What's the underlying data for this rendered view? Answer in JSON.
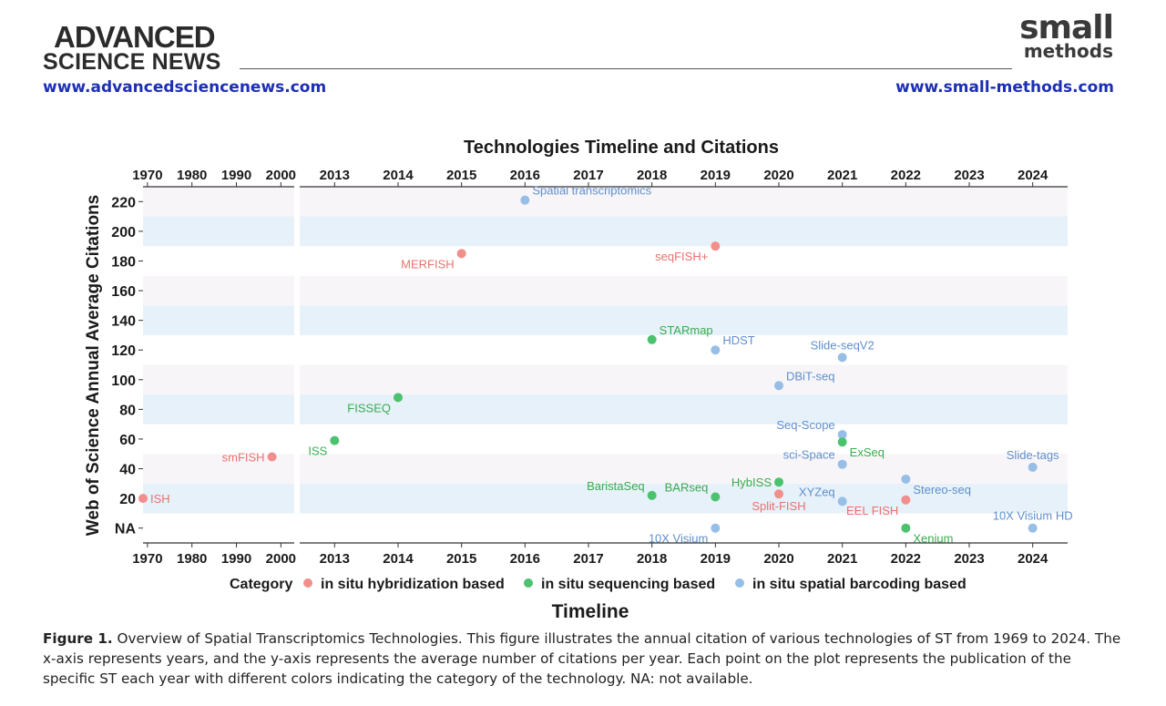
{
  "header": {
    "publisher_line1": "ADVANCED",
    "publisher_line2": "SCIENCE NEWS",
    "publisher_url": "www.advancedsciencenews.com",
    "journal_line1": "small",
    "journal_line2": "methods",
    "journal_url": "www.small-methods.com"
  },
  "caption": {
    "label": "Figure 1.",
    "text": "Overview of Spatial Transcriptomics Technologies. This figure illustrates the annual citation of various technologies of ST from 1969 to 2024. The x-axis represents years, and the y-axis represents the average number of citations per year. Each point on the plot represents the publication of the specific ST each year with different colors indicating the category of the technology. NA: not available."
  },
  "chart_data": {
    "type": "scatter",
    "title": "Technologies Timeline and Citations",
    "xlabel": "Timeline",
    "ylabel": "Web of Science Annual Average Citations",
    "ylim": [
      -10,
      230
    ],
    "yticks": [
      0,
      20,
      40,
      60,
      80,
      100,
      120,
      140,
      160,
      180,
      200,
      220
    ],
    "ytick_labels": [
      "NA",
      "20",
      "40",
      "60",
      "80",
      "100",
      "120",
      "140",
      "160",
      "180",
      "200",
      "220"
    ],
    "panels": [
      {
        "name": "early",
        "xlim": [
          1969,
          2003
        ],
        "ticks": [
          1970,
          1980,
          1990,
          2000
        ]
      },
      {
        "name": "recent",
        "xlim": [
          2012.45,
          2024.55
        ],
        "ticks": [
          2013,
          2014,
          2015,
          2016,
          2017,
          2018,
          2019,
          2020,
          2021,
          2022,
          2023,
          2024
        ]
      }
    ],
    "bands": [
      {
        "from": 10,
        "to": 30,
        "color": "#e6f1f9"
      },
      {
        "from": 30,
        "to": 50,
        "color": "#f8f5f8"
      },
      {
        "from": 50,
        "to": 70,
        "color": "#ffffff"
      },
      {
        "from": 70,
        "to": 90,
        "color": "#e6f1f9"
      },
      {
        "from": 90,
        "to": 110,
        "color": "#f8f5f8"
      },
      {
        "from": 110,
        "to": 130,
        "color": "#ffffff"
      },
      {
        "from": 130,
        "to": 150,
        "color": "#e6f1f9"
      },
      {
        "from": 150,
        "to": 170,
        "color": "#f8f5f8"
      },
      {
        "from": 170,
        "to": 190,
        "color": "#ffffff"
      },
      {
        "from": 190,
        "to": 210,
        "color": "#e6f1f9"
      },
      {
        "from": 210,
        "to": 230,
        "color": "#f8f5f8"
      }
    ],
    "legend": {
      "title": "Category",
      "position": "bottom",
      "entries": [
        {
          "key": "ish",
          "label": "in situ hybridization based",
          "color": "#f28e8c",
          "text_color": "#e8726f"
        },
        {
          "key": "seq",
          "label": "in situ sequencing based",
          "color": "#4cc26f",
          "text_color": "#3aac4f"
        },
        {
          "key": "barcode",
          "label": "in situ spatial barcoding based",
          "color": "#96bee6",
          "text_color": "#5f8fcc"
        }
      ]
    },
    "series": [
      {
        "name": "ISH",
        "category": "ish",
        "x": 1969,
        "y": 20,
        "label_side": "right"
      },
      {
        "name": "smFISH",
        "category": "ish",
        "x": 1998,
        "y": 48,
        "label_side": "left"
      },
      {
        "name": "ISS",
        "category": "seq",
        "x": 2013,
        "y": 59,
        "label_side": "below-left"
      },
      {
        "name": "FISSEQ",
        "category": "seq",
        "x": 2014,
        "y": 88,
        "label_side": "below-left"
      },
      {
        "name": "MERFISH",
        "category": "ish",
        "x": 2015,
        "y": 185,
        "label_side": "below-left"
      },
      {
        "name": "Spatial transcriptomics",
        "category": "barcode",
        "x": 2016,
        "y": 221,
        "label_side": "above-right"
      },
      {
        "name": "STARmap",
        "category": "seq",
        "x": 2018,
        "y": 127,
        "label_side": "above-right"
      },
      {
        "name": "BaristaSeq",
        "category": "seq",
        "x": 2018,
        "y": 22,
        "label_side": "above-left"
      },
      {
        "name": "seqFISH+",
        "category": "ish",
        "x": 2019,
        "y": 190,
        "label_side": "below-left"
      },
      {
        "name": "HDST",
        "category": "barcode",
        "x": 2019,
        "y": 120,
        "label_side": "above-right"
      },
      {
        "name": "BARseq",
        "category": "seq",
        "x": 2019,
        "y": 21,
        "label_side": "above-left"
      },
      {
        "name": "10X Visium",
        "category": "barcode",
        "x": 2019,
        "y": 0,
        "label_side": "below-left"
      },
      {
        "name": "DBiT-seq",
        "category": "barcode",
        "x": 2020,
        "y": 96,
        "label_side": "above-right"
      },
      {
        "name": "HybISS",
        "category": "seq",
        "x": 2020,
        "y": 31,
        "label_side": "left"
      },
      {
        "name": "Split-FISH",
        "category": "ish",
        "x": 2020,
        "y": 23,
        "label_side": "below"
      },
      {
        "name": "Slide-seqV2",
        "category": "barcode",
        "x": 2021,
        "y": 115,
        "label_side": "above"
      },
      {
        "name": "Seq-Scope",
        "category": "barcode",
        "x": 2021,
        "y": 63,
        "label_side": "above-left"
      },
      {
        "name": "ExSeq",
        "category": "seq",
        "x": 2021,
        "y": 58,
        "label_side": "below-right"
      },
      {
        "name": "sci-Space",
        "category": "barcode",
        "x": 2021,
        "y": 43,
        "label_side": "above-left"
      },
      {
        "name": "XYZeq",
        "category": "barcode",
        "x": 2021,
        "y": 18,
        "label_side": "above-left"
      },
      {
        "name": "Stereo-seq",
        "category": "barcode",
        "x": 2022,
        "y": 33,
        "label_side": "below-right"
      },
      {
        "name": "EEL FISH",
        "category": "ish",
        "x": 2022,
        "y": 19,
        "label_side": "below-left"
      },
      {
        "name": "Xenium",
        "category": "seq",
        "x": 2022,
        "y": 0,
        "label_side": "below-right"
      },
      {
        "name": "Slide-tags",
        "category": "barcode",
        "x": 2024,
        "y": 41,
        "label_side": "above"
      },
      {
        "name": "10X Visium HD",
        "category": "barcode",
        "x": 2024,
        "y": 0,
        "label_side": "above"
      }
    ]
  }
}
